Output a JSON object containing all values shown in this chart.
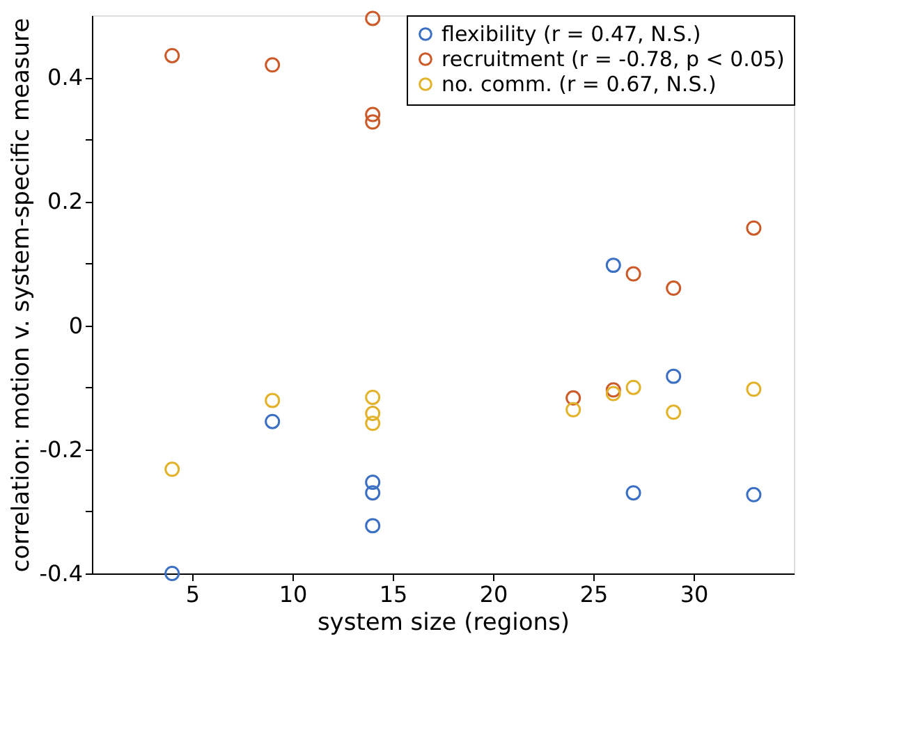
{
  "chart_data": {
    "type": "scatter",
    "xlabel": "system size (regions)",
    "ylabel": "correlation: motion v. system-specific measure",
    "xlim": [
      0,
      35
    ],
    "xticks": [
      5,
      10,
      15,
      20,
      25,
      30
    ],
    "ylim": [
      -0.4,
      0.5
    ],
    "yticks": [
      -0.4,
      {
        "value": -0.3,
        "label": null
      },
      -0.2,
      {
        "value": -0.1,
        "label": null
      },
      0,
      {
        "value": 0.1,
        "label": null
      },
      0.2,
      {
        "value": 0.3,
        "label": null
      },
      0.4
    ],
    "marker": "circle",
    "grid": false,
    "legend": "top right",
    "series": [
      {
        "name": "flexibility (r = 0.47, N.S.)",
        "color": "#3b6fc4",
        "x": [
          4,
          9,
          14,
          14,
          14,
          26,
          27,
          29,
          33
        ],
        "values": [
          -0.4,
          -0.155,
          -0.253,
          -0.27,
          -0.323,
          0.097,
          -0.27,
          -0.082,
          -0.273
        ]
      },
      {
        "name": "recruitment (r = -0.78, p < 0.05)",
        "color": "#cc5a28",
        "x": [
          4,
          9,
          14,
          14,
          14,
          24,
          26,
          27,
          29,
          33
        ],
        "values": [
          0.435,
          0.42,
          0.495,
          0.34,
          0.328,
          -0.117,
          -0.104,
          0.083,
          0.06,
          0.157
        ]
      },
      {
        "name": "no. comm. (r = 0.67, N.S.)",
        "color": "#e2b22a",
        "x": [
          4,
          9,
          14,
          14,
          14,
          24,
          26,
          27,
          29,
          33
        ],
        "values": [
          -0.232,
          -0.121,
          -0.116,
          -0.142,
          -0.158,
          -0.136,
          -0.11,
          -0.1,
          -0.14,
          -0.103
        ]
      }
    ]
  }
}
